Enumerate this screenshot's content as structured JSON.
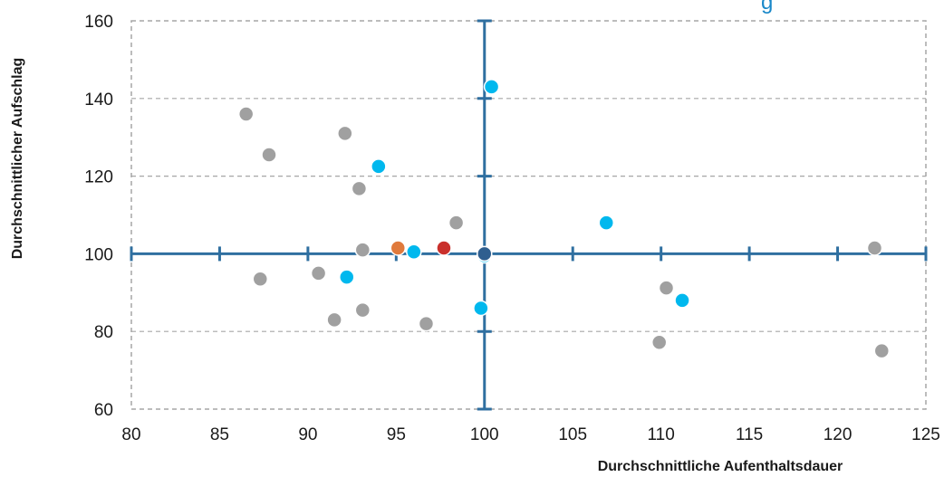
{
  "chart_data": {
    "type": "scatter",
    "title": "g",
    "xlabel": "Durchschnittliche Aufenthaltsdauer",
    "ylabel": "Durchschnittlicher Aufschlag",
    "xlim": [
      80,
      125
    ],
    "ylim": [
      60,
      160
    ],
    "x_ticks": [
      "80",
      "85",
      "90",
      "95",
      "100",
      "105",
      "110",
      "115",
      "120",
      "125"
    ],
    "y_ticks": [
      "60",
      "80",
      "100",
      "120",
      "140",
      "160"
    ],
    "reference_lines": {
      "x": 100,
      "y": 100,
      "color": "#2f6fa0"
    },
    "grid": {
      "horizontal": true,
      "style": "dashed",
      "color": "#a6a6a6"
    },
    "series": [
      {
        "color": "#a0a0a0",
        "points": [
          {
            "x": 86.5,
            "y": 136
          },
          {
            "x": 87.8,
            "y": 125.5
          },
          {
            "x": 87.3,
            "y": 93.5
          },
          {
            "x": 92.1,
            "y": 131
          },
          {
            "x": 92.9,
            "y": 116.8
          },
          {
            "x": 93.1,
            "y": 101
          },
          {
            "x": 90.6,
            "y": 95
          },
          {
            "x": 91.5,
            "y": 83
          },
          {
            "x": 93.1,
            "y": 85.5
          },
          {
            "x": 96.7,
            "y": 82
          },
          {
            "x": 98.4,
            "y": 108
          },
          {
            "x": 110.3,
            "y": 91.2
          },
          {
            "x": 109.9,
            "y": 77.2
          },
          {
            "x": 122.1,
            "y": 101.5
          },
          {
            "x": 122.5,
            "y": 75
          }
        ]
      },
      {
        "color": "#00b8ee",
        "points": [
          {
            "x": 100.4,
            "y": 143
          },
          {
            "x": 94,
            "y": 122.5
          },
          {
            "x": 92.2,
            "y": 94
          },
          {
            "x": 96,
            "y": 100.5
          },
          {
            "x": 99.8,
            "y": 86
          },
          {
            "x": 100,
            "y": 99.5
          },
          {
            "x": 106.9,
            "y": 108
          },
          {
            "x": 111.2,
            "y": 88
          }
        ]
      },
      {
        "color": "#e07a3c",
        "points": [
          {
            "x": 95.1,
            "y": 101.5
          }
        ]
      },
      {
        "color": "#c9302c",
        "points": [
          {
            "x": 97.7,
            "y": 101.5
          }
        ]
      },
      {
        "color": "#2f5f8f",
        "points": [
          {
            "x": 100,
            "y": 100
          }
        ]
      }
    ]
  }
}
